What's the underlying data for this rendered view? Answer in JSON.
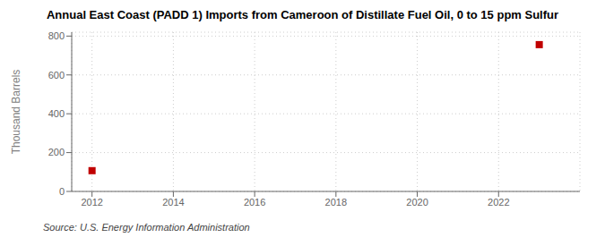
{
  "chart_data": {
    "type": "scatter",
    "title": "Annual East Coast (PADD 1) Imports from Cameroon of Distillate Fuel Oil, 0 to 15 ppm Sulfur",
    "ylabel": "Thousand Barrels",
    "source": "Source: U.S. Energy Information Administration",
    "x": [
      2012,
      2023
    ],
    "values": [
      107,
      756
    ],
    "color": "#c00000",
    "marker": "square",
    "xlim": [
      2011.5,
      2024.0
    ],
    "ylim": [
      0,
      820
    ],
    "xticks": [
      2012,
      2014,
      2016,
      2018,
      2020,
      2022
    ],
    "yticks": [
      0,
      200,
      400,
      600,
      800
    ],
    "grid": true
  }
}
